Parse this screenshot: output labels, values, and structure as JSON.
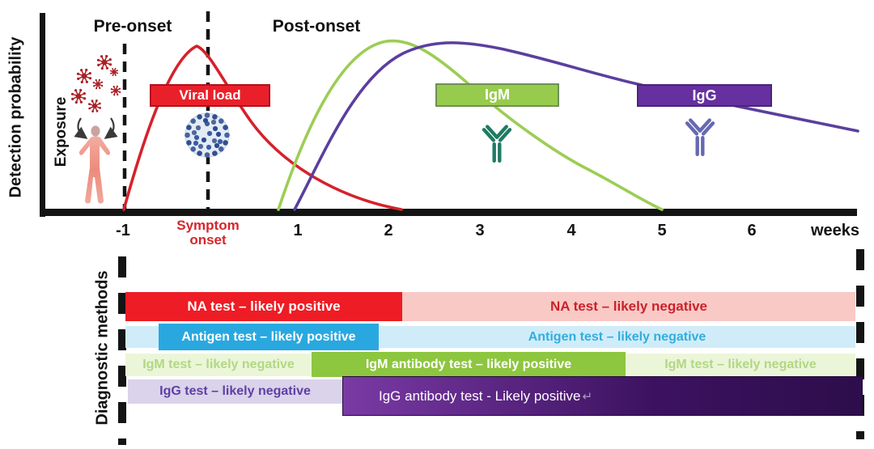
{
  "figure": {
    "y_axis_label": "Detection probability",
    "pre_onset_label": "Pre-onset",
    "post_onset_label": "Post-onset",
    "exposure_label": "Exposure",
    "symptom_onset_label": "Symptom onset",
    "weeks_label": "weeks",
    "x_ticks": [
      "-1",
      "1",
      "2",
      "3",
      "4",
      "5",
      "6"
    ],
    "curve_tags": {
      "viral_load": "Viral load",
      "igm": "IgM",
      "igg": "IgG"
    },
    "colors": {
      "viral_curve": "#d6212b",
      "igm_curve": "#9ccd55",
      "igg_curve": "#5b3f9e",
      "viral_box": "#e9202a",
      "viral_box_border": "#b40f1c",
      "igm_box": "#97cb4e",
      "igm_box_border": "#6f8f55",
      "igg_box": "#6630a0",
      "igg_box_border": "#4d2378",
      "axis": "#141414",
      "symptom_onset_text": "#d6252c",
      "igm_antibody_icon": "#1f7b62",
      "igg_antibody_icon": "#6569b0",
      "virus_particle": "#a92025"
    }
  },
  "diagnostics": {
    "section_label": "Diagnostic methods",
    "rows": [
      {
        "name": "na-test",
        "segments": [
          {
            "label": "NA test – likely positive",
            "color": "#ee1c24",
            "text_color": "#ffffff"
          },
          {
            "label": "NA test – likely negative",
            "color": "#f9c9c6",
            "text_color": "#c9232a"
          }
        ]
      },
      {
        "name": "antigen-test",
        "segments": [
          {
            "label": "Antigen test – likely positive",
            "color": "#29a8e0",
            "text_color": "#ffffff"
          },
          {
            "label": "Antigen test – likely negative",
            "color": "#d0ecf9",
            "text_color": "#31aede"
          }
        ]
      },
      {
        "name": "igm-test",
        "segments": [
          {
            "label": "IgM test – likely negative",
            "color": "#ebf6d8",
            "text_color": "#b2d786"
          },
          {
            "label": "IgM antibody test – likely positive",
            "color": "#8dc63f",
            "text_color": "#ffffff"
          },
          {
            "label": "IgM test – likely negative",
            "color": "#ebf6d8",
            "text_color": "#b2d786"
          }
        ]
      },
      {
        "name": "igg-test",
        "segments": [
          {
            "label": "IgG test – likely negative",
            "color": "#dad3ea",
            "text_color": "#5f3fa6"
          },
          {
            "label": "IgG antibody test - Likely positive",
            "suffix": "↵",
            "color_from": "#7a3aa5",
            "color_mid": "#3c1260",
            "color_to": "#2d0d4b",
            "text_color": "#ffffff"
          }
        ]
      }
    ]
  },
  "chart_data": {
    "type": "line",
    "title": "",
    "xlabel": "weeks",
    "ylabel": "Detection probability",
    "x_ticks": [
      -1,
      1,
      2,
      3,
      4,
      5,
      6
    ],
    "annotations": [
      "Pre-onset",
      "Post-onset",
      "Symptom onset",
      "Exposure"
    ],
    "series": [
      {
        "name": "Viral load",
        "color": "#d6212b",
        "x": [
          -1,
          -0.6,
          -0.1,
          0.5,
          1,
          1.5,
          2.1
        ],
        "y": [
          0,
          0.55,
          0.97,
          0.8,
          0.55,
          0.25,
          0
        ]
      },
      {
        "name": "IgM",
        "color": "#9ccd55",
        "x": [
          0.8,
          1.4,
          2.1,
          3,
          4,
          5
        ],
        "y": [
          0,
          0.55,
          0.98,
          0.72,
          0.3,
          0
        ]
      },
      {
        "name": "IgG",
        "color": "#5b3f9e",
        "x": [
          1,
          1.8,
          3,
          4,
          5,
          6,
          7.2
        ],
        "y": [
          0,
          0.6,
          0.95,
          0.88,
          0.75,
          0.62,
          0.46
        ]
      }
    ]
  }
}
